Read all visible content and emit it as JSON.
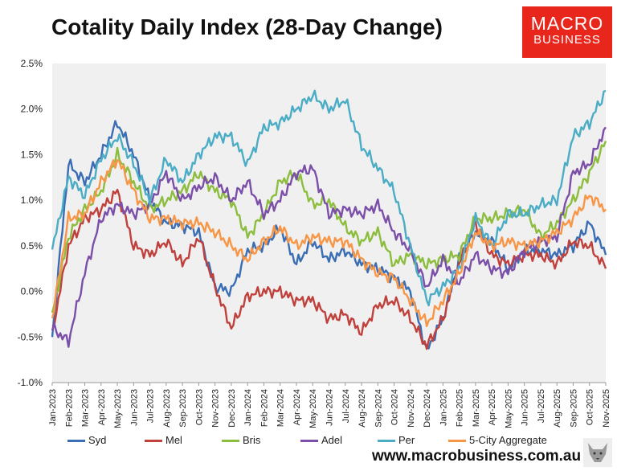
{
  "title": "Cotality Daily Index (28-Day Change)",
  "logo": {
    "line1": "MACRO",
    "line2": "BUSINESS",
    "color": "#e8261c"
  },
  "website": "www.macrobusiness.com.au",
  "chart_data": {
    "type": "line",
    "title": "Cotality Daily Index (28-Day Change)",
    "xlabel": "",
    "ylabel": "",
    "ylim": [
      -1.0,
      2.5
    ],
    "yticks": [
      "-1.0%",
      "-0.5%",
      "0.0%",
      "0.5%",
      "1.0%",
      "1.5%",
      "2.0%",
      "2.5%"
    ],
    "ytick_values": [
      -1.0,
      -0.5,
      0.0,
      0.5,
      1.0,
      1.5,
      2.0,
      2.5
    ],
    "x": [
      "Jan-2023",
      "Feb-2023",
      "Mar-2023",
      "Apr-2023",
      "May-2023",
      "Jun-2023",
      "Jul-2023",
      "Aug-2023",
      "Sep-2023",
      "Oct-2023",
      "Nov-2023",
      "Dec-2023",
      "Jan-2024",
      "Feb-2024",
      "Mar-2024",
      "Apr-2024",
      "May-2024",
      "Jun-2024",
      "Jul-2024",
      "Aug-2024",
      "Sep-2024",
      "Oct-2024",
      "Nov-2024",
      "Dec-2024",
      "Jan-2025",
      "Feb-2025",
      "Mar-2025",
      "Apr-2025",
      "May-2025",
      "Jun-2025",
      "Jul-2025",
      "Aug-2025",
      "Sep-2025",
      "Oct-2025",
      "Nov-2025"
    ],
    "grid": false,
    "legend_position": "bottom",
    "plot_background": "#f0f0f0",
    "series": [
      {
        "name": "Syd",
        "color": "#3a6db4",
        "values": [
          -0.5,
          1.4,
          1.2,
          1.5,
          1.85,
          1.5,
          1.0,
          0.75,
          0.72,
          0.65,
          0.05,
          0.0,
          0.45,
          0.5,
          0.7,
          0.3,
          0.55,
          0.35,
          0.45,
          0.3,
          0.25,
          0.15,
          0.0,
          -0.65,
          -0.3,
          0.35,
          0.65,
          0.55,
          0.25,
          0.45,
          0.45,
          0.4,
          0.5,
          0.75,
          0.4
        ]
      },
      {
        "name": "Mel",
        "color": "#c0403c",
        "values": [
          -0.45,
          0.5,
          0.8,
          0.9,
          1.1,
          0.5,
          0.4,
          0.55,
          0.3,
          0.6,
          0.05,
          -0.4,
          -0.05,
          0.0,
          0.0,
          -0.1,
          -0.1,
          -0.3,
          -0.25,
          -0.45,
          -0.15,
          -0.1,
          -0.3,
          -0.6,
          -0.3,
          0.3,
          0.75,
          0.4,
          0.3,
          0.4,
          0.4,
          0.3,
          0.55,
          0.5,
          0.25
        ]
      },
      {
        "name": "Bris",
        "color": "#8cbd3e",
        "values": [
          -0.25,
          0.6,
          0.9,
          1.1,
          1.5,
          1.2,
          0.9,
          1.0,
          1.1,
          1.3,
          1.1,
          1.0,
          0.6,
          0.85,
          1.2,
          1.3,
          0.95,
          1.0,
          0.7,
          0.55,
          0.65,
          0.3,
          0.4,
          0.3,
          0.35,
          0.4,
          0.8,
          0.8,
          0.85,
          0.9,
          0.6,
          0.75,
          1.0,
          1.3,
          1.65
        ]
      },
      {
        "name": "Adel",
        "color": "#7b4ea8",
        "values": [
          -0.4,
          -0.55,
          0.2,
          0.8,
          0.95,
          0.85,
          0.95,
          1.3,
          1.0,
          1.15,
          1.25,
          1.0,
          1.2,
          0.85,
          1.0,
          1.3,
          1.35,
          0.85,
          0.9,
          0.85,
          0.95,
          0.65,
          0.45,
          0.05,
          0.35,
          0.1,
          0.4,
          0.25,
          0.2,
          0.45,
          0.55,
          0.6,
          1.3,
          1.4,
          1.8
        ]
      },
      {
        "name": "Per",
        "color": "#4bacc6",
        "values": [
          0.45,
          1.25,
          1.05,
          1.45,
          1.7,
          1.4,
          1.0,
          1.45,
          1.2,
          1.5,
          1.7,
          1.7,
          1.4,
          1.8,
          1.85,
          2.0,
          2.15,
          2.0,
          2.1,
          1.6,
          1.35,
          1.1,
          0.5,
          -0.1,
          0.05,
          0.25,
          0.8,
          0.5,
          0.85,
          0.85,
          0.95,
          1.0,
          1.7,
          1.85,
          2.2
        ]
      },
      {
        "name": "5-City Aggregate",
        "color": "#f79646",
        "values": [
          -0.3,
          0.8,
          0.85,
          1.2,
          1.45,
          1.1,
          0.8,
          0.8,
          0.75,
          0.75,
          0.65,
          0.5,
          0.35,
          0.55,
          0.7,
          0.5,
          0.6,
          0.55,
          0.55,
          0.35,
          0.2,
          0.15,
          -0.1,
          -0.35,
          -0.1,
          0.2,
          0.65,
          0.5,
          0.55,
          0.5,
          0.55,
          0.65,
          0.8,
          1.05,
          0.9
        ]
      }
    ]
  }
}
